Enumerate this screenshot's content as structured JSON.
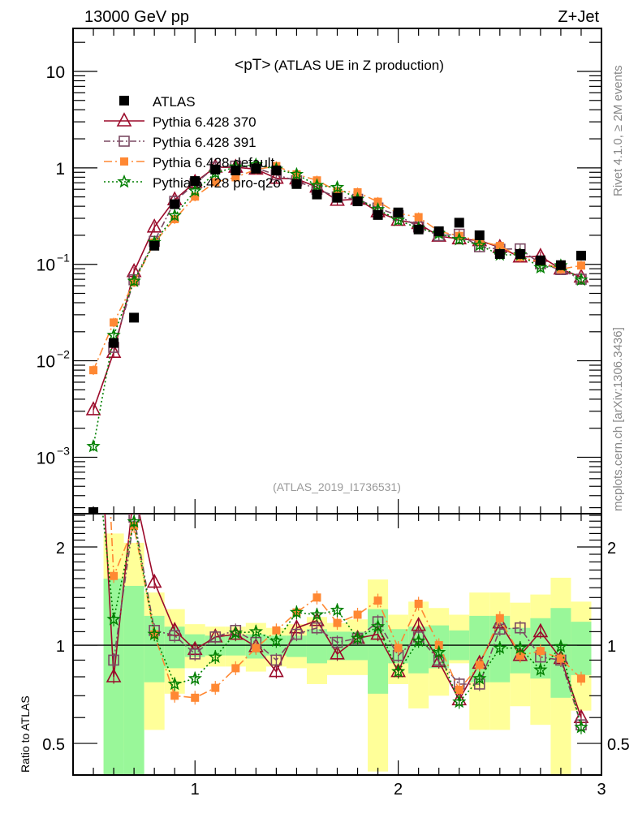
{
  "chart_data": {
    "type": "scatter",
    "header_left": "13000 GeV pp",
    "header_right": "Z+Jet",
    "title_main": "<pT>",
    "title_sub": "(ATLAS UE in Z production)",
    "analysis_label": "(ATLAS_2019_I1736531)",
    "side_label_top": "Rivet 4.1.0, ≥ 2M events",
    "side_label_bottom": "mcplots.cern.ch [arXiv:1306.3436]",
    "ratio_ylabel": "Ratio to ATLAS",
    "x": [
      0.5,
      0.6,
      0.7,
      0.8,
      0.9,
      1.0,
      1.1,
      1.2,
      1.3,
      1.4,
      1.5,
      1.6,
      1.7,
      1.8,
      1.9,
      2.0,
      2.1,
      2.2,
      2.3,
      2.4,
      2.5,
      2.6,
      2.7,
      2.8,
      2.9
    ],
    "xlim": [
      0.4,
      3.0
    ],
    "xticks": [
      {
        "v": 1,
        "label": "1"
      },
      {
        "v": 2,
        "label": "2"
      },
      {
        "v": 3,
        "label": "3"
      }
    ],
    "main_yscale": "log",
    "main_ylim": [
      0.00026,
      27.9
    ],
    "main_yticks": [
      {
        "exp": 1,
        "label": "10"
      },
      {
        "exp": 0,
        "label": "1"
      },
      {
        "exp": -1,
        "label": "10",
        "sup": "−1"
      },
      {
        "exp": -2,
        "label": "10",
        "sup": "−2"
      },
      {
        "exp": -3,
        "label": "10",
        "sup": "−3"
      }
    ],
    "ratio_yscale": "log",
    "ratio_ylim": [
      0.4,
      2.53
    ],
    "ratio_yticks": [
      {
        "v": 2,
        "label": "2"
      },
      {
        "v": 1,
        "label": "1"
      },
      {
        "v": 0.5,
        "label": "0.5"
      }
    ],
    "data": {
      "name": "ATLAS",
      "values": [
        0.00027,
        0.0153,
        0.028,
        0.156,
        0.42,
        0.73,
        0.96,
        0.94,
        0.98,
        0.94,
        0.68,
        0.53,
        0.49,
        0.45,
        0.325,
        0.345,
        0.23,
        0.22,
        0.27,
        0.2,
        0.128,
        0.128,
        0.11,
        0.098,
        0.123
      ],
      "band_stat_up": [
        null,
        1.6,
        1.52,
        1.23,
        1.14,
        1.08,
        1.07,
        1.07,
        1.08,
        1.07,
        1.07,
        1.12,
        1.1,
        1.1,
        1.29,
        1.12,
        1.14,
        1.15,
        1.11,
        1.23,
        1.23,
        1.13,
        1.21,
        1.3,
        1.18
      ],
      "band_stat_down": [
        null,
        0.3,
        0.3,
        0.77,
        0.85,
        0.92,
        0.93,
        0.93,
        0.91,
        0.93,
        0.92,
        0.88,
        0.9,
        0.9,
        0.71,
        0.88,
        0.82,
        0.85,
        0.9,
        0.77,
        0.77,
        0.82,
        0.79,
        0.69,
        0.81
      ],
      "band_tot_up": [
        null,
        2.2,
        2.06,
        1.45,
        1.29,
        1.16,
        1.14,
        1.14,
        1.17,
        1.13,
        1.16,
        1.22,
        1.17,
        1.2,
        1.59,
        1.24,
        1.36,
        1.3,
        1.24,
        1.45,
        1.45,
        1.35,
        1.43,
        1.61,
        1.36
      ],
      "band_tot_down": [
        null,
        0.3,
        0.47,
        0.55,
        0.71,
        0.85,
        0.86,
        0.86,
        0.83,
        0.86,
        0.85,
        0.76,
        0.81,
        0.81,
        0.41,
        0.76,
        0.64,
        0.7,
        0.88,
        0.55,
        0.55,
        0.65,
        0.57,
        0.3,
        0.63
      ]
    },
    "series": [
      {
        "name": "Pythia 6.428 370",
        "color": "#9b0a2a",
        "marker": "triangle-open",
        "dash": "",
        "ratio": [
          11.5,
          0.8,
          3.0,
          1.56,
          1.11,
          0.97,
          1.06,
          1.08,
          0.99,
          0.83,
          1.13,
          1.19,
          0.94,
          1.05,
          1.08,
          0.83,
          1.15,
          0.89,
          0.68,
          0.88,
          1.17,
          0.93,
          1.1,
          0.91,
          0.6
        ]
      },
      {
        "name": "Pythia 6.428 391",
        "color": "#7b4a63",
        "marker": "square-open",
        "dash": "8,3,2,3",
        "ratio": [
          null,
          0.9,
          2.47,
          1.11,
          1.07,
          0.94,
          1.06,
          1.11,
          1.02,
          0.9,
          1.08,
          1.13,
          1.02,
          1.05,
          1.18,
          0.93,
          1.06,
          0.9,
          0.76,
          0.76,
          1.12,
          1.13,
          0.92,
          0.9,
          0.57
        ]
      },
      {
        "name": "Pythia 6.428 default",
        "color": "#ff8833",
        "marker": "square-filled",
        "dash": "10,4,2,4",
        "ratio": [
          29.6,
          1.63,
          2.32,
          1.08,
          0.7,
          0.69,
          0.74,
          0.85,
          0.98,
          1.11,
          1.26,
          1.4,
          1.17,
          1.24,
          1.37,
          0.98,
          1.34,
          1.0,
          0.73,
          0.87,
          1.21,
          0.93,
          0.96,
          0.91,
          0.79
        ]
      },
      {
        "name": "Pythia 6.428 pro-q2o",
        "color": "#007f00",
        "marker": "star-open",
        "dash": "2,3",
        "ratio": [
          4.8,
          1.2,
          2.39,
          1.08,
          0.76,
          0.79,
          0.92,
          1.09,
          1.1,
          1.03,
          1.26,
          1.24,
          1.28,
          1.05,
          1.14,
          0.83,
          1.03,
          0.95,
          0.67,
          0.79,
          0.98,
          0.98,
          0.84,
          0.99,
          0.56
        ]
      }
    ],
    "colors": {
      "band_stat": "#99f799",
      "band_tot": "#ffff99",
      "data": "#000000"
    }
  }
}
